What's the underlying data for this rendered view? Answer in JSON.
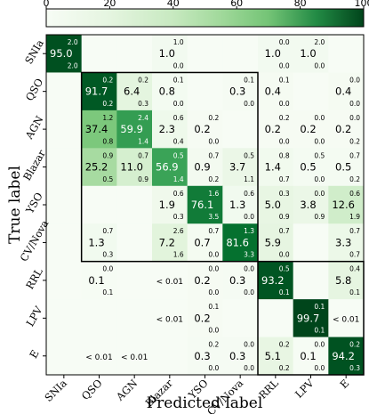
{
  "chart_data": {
    "type": "heatmap",
    "title": "",
    "xlabel": "Predicted label",
    "ylabel": "True label",
    "x_categories": [
      "SNIa",
      "QSO",
      "AGN",
      "Blazar",
      "YSO",
      "CV/Nova",
      "RRL",
      "LPV",
      "E"
    ],
    "y_categories": [
      "SNIa",
      "QSO",
      "AGN",
      "Blazar",
      "YSO",
      "CV/Nova",
      "RRL",
      "LPV",
      "E"
    ],
    "colorbar": {
      "range": [
        0,
        100
      ],
      "ticks": [
        "0",
        "20",
        "40",
        "60",
        "80",
        "100"
      ],
      "placement": "top"
    },
    "colors": {
      "low": "#f7fcf5",
      "mid": "#74c476",
      "high": "#00441b"
    },
    "cells": [
      [
        {
          "v": 95.0,
          "t": "95.0",
          "hi": "2.0",
          "lo": "2.0"
        },
        null,
        null,
        {
          "v": 1.0,
          "t": "1.0",
          "hi": "1.0",
          "lo": "0.0"
        },
        null,
        null,
        {
          "v": 1.0,
          "t": "1.0",
          "hi": "0.0",
          "lo": "0.0"
        },
        {
          "v": 1.0,
          "t": "1.0",
          "hi": "2.0",
          "lo": "0.0"
        },
        null
      ],
      [
        null,
        {
          "v": 91.7,
          "t": "91.7",
          "hi": "0.2",
          "lo": "0.2"
        },
        {
          "v": 6.4,
          "t": "6.4",
          "hi": "0.2",
          "lo": "0.3"
        },
        {
          "v": 0.8,
          "t": "0.8",
          "hi": "0.1",
          "lo": "0.0"
        },
        null,
        {
          "v": 0.3,
          "t": "0.3",
          "hi": "0.1",
          "lo": "0.0"
        },
        {
          "v": 0.4,
          "t": "0.4",
          "hi": "0.1",
          "lo": "0.0"
        },
        null,
        {
          "v": 0.4,
          "t": "0.4",
          "hi": "0.0",
          "lo": "0.0"
        }
      ],
      [
        null,
        {
          "v": 37.4,
          "t": "37.4",
          "hi": "1.2",
          "lo": "0.8"
        },
        {
          "v": 59.9,
          "t": "59.9",
          "hi": "2.4",
          "lo": "1.4"
        },
        {
          "v": 2.3,
          "t": "2.3",
          "hi": "0.6",
          "lo": "0.4"
        },
        {
          "v": 0.2,
          "t": "0.2",
          "hi": "0.2",
          "lo": "0.0"
        },
        null,
        {
          "v": 0.2,
          "t": "0.2",
          "hi": "0.2",
          "lo": "0.0"
        },
        {
          "v": 0.2,
          "t": "0.2",
          "hi": "0.0",
          "lo": "0.0"
        },
        {
          "v": 0.2,
          "t": "0.2",
          "hi": "0.0",
          "lo": "0.2"
        }
      ],
      [
        null,
        {
          "v": 25.2,
          "t": "25.2",
          "hi": "0.9",
          "lo": "0.5"
        },
        {
          "v": 11.0,
          "t": "11.0",
          "hi": "0.7",
          "lo": "0.9"
        },
        {
          "v": 56.9,
          "t": "56.9",
          "hi": "0.5",
          "lo": "1.4"
        },
        {
          "v": 0.9,
          "t": "0.9",
          "hi": "0.7",
          "lo": "0.2"
        },
        {
          "v": 3.7,
          "t": "3.7",
          "hi": "0.5",
          "lo": "1.1"
        },
        {
          "v": 1.4,
          "t": "1.4",
          "hi": "0.8",
          "lo": "0.7"
        },
        {
          "v": 0.5,
          "t": "0.5",
          "hi": "0.5",
          "lo": "0.0"
        },
        {
          "v": 0.5,
          "t": "0.5",
          "hi": "0.7",
          "lo": "0.2"
        }
      ],
      [
        null,
        null,
        null,
        {
          "v": 1.9,
          "t": "1.9",
          "hi": "0.6",
          "lo": "0.3"
        },
        {
          "v": 76.1,
          "t": "76.1",
          "hi": "1.6",
          "lo": "3.5"
        },
        {
          "v": 1.3,
          "t": "1.3",
          "hi": "0.6",
          "lo": "0.0"
        },
        {
          "v": 5.0,
          "t": "5.0",
          "hi": "0.3",
          "lo": "0.9"
        },
        {
          "v": 3.8,
          "t": "3.8",
          "hi": "0.0",
          "lo": "0.9"
        },
        {
          "v": 12.6,
          "t": "12.6",
          "hi": "0.6",
          "lo": "1.9"
        }
      ],
      [
        null,
        {
          "v": 1.3,
          "t": "1.3",
          "hi": "0.7",
          "lo": "0.3"
        },
        null,
        {
          "v": 7.2,
          "t": "7.2",
          "hi": "2.6",
          "lo": "1.6"
        },
        {
          "v": 0.7,
          "t": "0.7",
          "hi": "0.7",
          "lo": "0.0"
        },
        {
          "v": 81.6,
          "t": "81.6",
          "hi": "1.3",
          "lo": "3.3"
        },
        {
          "v": 5.9,
          "t": "5.9",
          "hi": "0.7",
          "lo": "0.0"
        },
        null,
        {
          "v": 3.3,
          "t": "3.3",
          "hi": "0.7",
          "lo": "0.7"
        }
      ],
      [
        null,
        {
          "v": 0.1,
          "t": "0.1",
          "hi": "0.0",
          "lo": "0.1"
        },
        null,
        {
          "v": 0.01,
          "t": "< 0.01",
          "hi": "",
          "lo": ""
        },
        {
          "v": 0.2,
          "t": "0.2",
          "hi": "0.0",
          "lo": "0.0"
        },
        {
          "v": 0.3,
          "t": "0.3",
          "hi": "0.0",
          "lo": "0.0"
        },
        {
          "v": 93.2,
          "t": "93.2",
          "hi": "0.5",
          "lo": "0.1"
        },
        null,
        {
          "v": 5.8,
          "t": "5.8",
          "hi": "0.4",
          "lo": "0.1"
        }
      ],
      [
        null,
        null,
        null,
        {
          "v": 0.01,
          "t": "< 0.01",
          "hi": "",
          "lo": ""
        },
        {
          "v": 0.2,
          "t": "0.2",
          "hi": "0.1",
          "lo": "0.0"
        },
        null,
        null,
        {
          "v": 99.7,
          "t": "99.7",
          "hi": "0.1",
          "lo": "0.1"
        },
        {
          "v": 0.01,
          "t": "< 0.01",
          "hi": "",
          "lo": ""
        }
      ],
      [
        null,
        {
          "v": 0.01,
          "t": "< 0.01",
          "hi": "",
          "lo": ""
        },
        {
          "v": 0.01,
          "t": "< 0.01",
          "hi": "",
          "lo": ""
        },
        null,
        {
          "v": 0.3,
          "t": "0.3",
          "hi": "0.2",
          "lo": "0.0"
        },
        {
          "v": 0.3,
          "t": "0.3",
          "hi": "0.0",
          "lo": "0.0"
        },
        {
          "v": 5.1,
          "t": "5.1",
          "hi": "0.2",
          "lo": "0.2"
        },
        {
          "v": 0.1,
          "t": "0.1",
          "hi": "0.0",
          "lo": "0.0"
        },
        {
          "v": 94.2,
          "t": "94.2",
          "hi": "0.2",
          "lo": "0.3"
        }
      ]
    ],
    "group_boxes": [
      {
        "rows": [
          1,
          5
        ],
        "cols": [
          1,
          5
        ]
      },
      {
        "rows": [
          6,
          8
        ],
        "cols": [
          6,
          8
        ]
      }
    ]
  }
}
